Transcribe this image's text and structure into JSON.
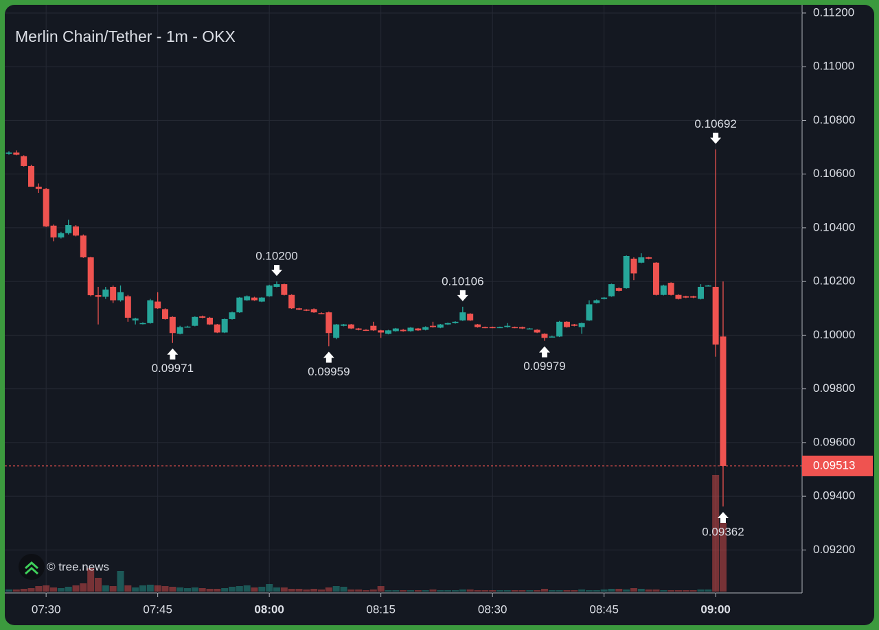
{
  "chart_data": {
    "type": "candlestick",
    "title": "Merlin Chain/Tether - 1m - OKX",
    "watermark": "© tree.news",
    "up_color": "#26a69a",
    "down_color": "#ef5350",
    "grid": true,
    "x": [
      "07:25",
      "07:26",
      "07:27",
      "07:28",
      "07:29",
      "07:30",
      "07:31",
      "07:32",
      "07:33",
      "07:34",
      "07:35",
      "07:36",
      "07:37",
      "07:38",
      "07:39",
      "07:40",
      "07:41",
      "07:42",
      "07:43",
      "07:44",
      "07:45",
      "07:46",
      "07:47",
      "07:48",
      "07:49",
      "07:50",
      "07:51",
      "07:52",
      "07:53",
      "07:54",
      "07:55",
      "07:56",
      "07:57",
      "07:58",
      "07:59",
      "08:00",
      "08:01",
      "08:02",
      "08:03",
      "08:04",
      "08:05",
      "08:06",
      "08:07",
      "08:08",
      "08:09",
      "08:10",
      "08:11",
      "08:12",
      "08:13",
      "08:14",
      "08:15",
      "08:16",
      "08:17",
      "08:18",
      "08:19",
      "08:20",
      "08:21",
      "08:22",
      "08:23",
      "08:24",
      "08:25",
      "08:26",
      "08:27",
      "08:28",
      "08:29",
      "08:30",
      "08:31",
      "08:32",
      "08:33",
      "08:34",
      "08:35",
      "08:36",
      "08:37",
      "08:38",
      "08:39",
      "08:40",
      "08:41",
      "08:42",
      "08:43",
      "08:44",
      "08:45",
      "08:46",
      "08:47",
      "08:48",
      "08:49",
      "08:50",
      "08:51",
      "08:52",
      "08:53",
      "08:54",
      "08:55",
      "08:56",
      "08:57",
      "08:58",
      "08:59",
      "09:00",
      "09:01"
    ],
    "open": [
      0.10676,
      0.1068,
      0.10667,
      0.1063,
      0.10553,
      0.10545,
      0.10408,
      0.10364,
      0.1038,
      0.10405,
      0.10371,
      0.1029,
      0.10149,
      0.10143,
      0.1018,
      0.1013,
      0.10145,
      0.10055,
      0.10042,
      0.10045,
      0.10125,
      0.10097,
      0.10068,
      0.10005,
      0.1003,
      0.10035,
      0.1007,
      0.10065,
      0.1004,
      0.1001,
      0.1006,
      0.10085,
      0.1013,
      0.1014,
      0.10125,
      0.10145,
      0.1018,
      0.1019,
      0.1015,
      0.101,
      0.10095,
      0.10097,
      0.10082,
      0.10085,
      0.0999,
      0.10035,
      0.1004,
      0.10025,
      0.1002,
      0.10035,
      0.10018,
      0.10005,
      0.10015,
      0.1002,
      0.10015,
      0.10025,
      0.1002,
      0.10035,
      0.10028,
      0.1004,
      0.10045,
      0.10055,
      0.1008,
      0.1004,
      0.1003,
      0.1003,
      0.1003,
      0.1003,
      0.1003,
      0.1003,
      0.10025,
      0.1002,
      0.10005,
      0.09995,
      0.09995,
      0.1005,
      0.1004,
      0.1003,
      0.10055,
      0.1012,
      0.10135,
      0.10145,
      0.10175,
      0.10175,
      0.10285,
      0.1027,
      0.1029,
      0.1027,
      0.1015,
      0.10195,
      0.1015,
      0.10145,
      0.10145,
      0.10135,
      0.10185,
      0.1018,
      0.09995
    ],
    "high": [
      0.10685,
      0.10688,
      0.1067,
      0.10635,
      0.10565,
      0.10548,
      0.10412,
      0.10385,
      0.1043,
      0.1041,
      0.10375,
      0.10292,
      0.1018,
      0.1018,
      0.10185,
      0.10185,
      0.1015,
      0.10065,
      0.10048,
      0.10135,
      0.1016,
      0.101,
      0.1007,
      0.10035,
      0.10035,
      0.1007,
      0.10073,
      0.10068,
      0.10042,
      0.10062,
      0.10088,
      0.10142,
      0.10148,
      0.10143,
      0.10142,
      0.10188,
      0.102,
      0.10192,
      0.10152,
      0.10102,
      0.10097,
      0.101,
      0.10085,
      0.10088,
      0.10042,
      0.10042,
      0.10042,
      0.10027,
      0.10022,
      0.1005,
      0.1002,
      0.1002,
      0.10027,
      0.10023,
      0.1003,
      0.10027,
      0.10033,
      0.1005,
      0.10042,
      0.10047,
      0.10052,
      0.10106,
      0.10082,
      0.10042,
      0.10032,
      0.10032,
      0.10032,
      0.10045,
      0.10032,
      0.10032,
      0.10027,
      0.10022,
      0.10007,
      0.09998,
      0.10053,
      0.10052,
      0.10042,
      0.10047,
      0.1013,
      0.10133,
      0.10142,
      0.10192,
      0.10178,
      0.10297,
      0.1029,
      0.10305,
      0.10292,
      0.10272,
      0.10188,
      0.10197,
      0.10152,
      0.10147,
      0.10147,
      0.1019,
      0.10187,
      0.10692,
      0.102
    ],
    "low": [
      0.10672,
      0.1067,
      0.10628,
      0.10553,
      0.1053,
      0.10403,
      0.1035,
      0.1036,
      0.10375,
      0.10368,
      0.10288,
      0.10145,
      0.1004,
      0.10135,
      0.1012,
      0.10125,
      0.1005,
      0.1004,
      0.1004,
      0.10043,
      0.10098,
      0.10058,
      0.09971,
      0.10003,
      0.10028,
      0.10033,
      0.10063,
      0.10038,
      0.10008,
      0.10008,
      0.10058,
      0.10083,
      0.10128,
      0.10128,
      0.10123,
      0.10143,
      0.10178,
      0.10148,
      0.10098,
      0.10093,
      0.1009,
      0.10083,
      0.10078,
      0.09959,
      0.09985,
      0.10033,
      0.10023,
      0.10018,
      0.10016,
      0.10016,
      0.0999,
      0.10003,
      0.10013,
      0.10013,
      0.10013,
      0.10016,
      0.10018,
      0.10028,
      0.10026,
      0.10038,
      0.10043,
      0.10053,
      0.10053,
      0.10028,
      0.10026,
      0.10026,
      0.10028,
      0.10028,
      0.10026,
      0.10023,
      0.10023,
      0.10008,
      0.09979,
      0.09993,
      0.09993,
      0.10028,
      0.10033,
      0.10005,
      0.10053,
      0.10118,
      0.10133,
      0.10143,
      0.10163,
      0.10173,
      0.10205,
      0.10268,
      0.10283,
      0.10148,
      0.10148,
      0.10148,
      0.10133,
      0.10138,
      0.10138,
      0.10133,
      0.10183,
      0.0992,
      0.09362
    ],
    "close": [
      0.1068,
      0.10672,
      0.1063,
      0.10553,
      0.10545,
      0.10405,
      0.10364,
      0.1038,
      0.1041,
      0.10371,
      0.1029,
      0.10149,
      0.10143,
      0.1017,
      0.1013,
      0.1016,
      0.10065,
      0.10062,
      0.10045,
      0.1013,
      0.101,
      0.1006,
      0.10008,
      0.1003,
      0.10032,
      0.10068,
      0.10065,
      0.1004,
      0.1001,
      0.1006,
      0.10085,
      0.1014,
      0.10145,
      0.1013,
      0.1014,
      0.10185,
      0.1019,
      0.1015,
      0.101,
      0.10095,
      0.10092,
      0.10085,
      0.1008,
      0.10008,
      0.1004,
      0.1004,
      0.10025,
      0.1002,
      0.10018,
      0.10018,
      0.1001,
      0.10018,
      0.10025,
      0.10015,
      0.10028,
      0.10018,
      0.1003,
      0.1003,
      0.1004,
      0.10045,
      0.1005,
      0.10085,
      0.10055,
      0.1003,
      0.10028,
      0.10028,
      0.1003,
      0.10035,
      0.10028,
      0.10025,
      0.10025,
      0.1001,
      0.0999,
      0.09995,
      0.1005,
      0.1003,
      0.10035,
      0.10045,
      0.10115,
      0.1013,
      0.1014,
      0.1019,
      0.10165,
      0.10295,
      0.1023,
      0.1029,
      0.10285,
      0.1015,
      0.10185,
      0.1015,
      0.10135,
      0.1014,
      0.1014,
      0.1018,
      0.10185,
      0.09965,
      0.09513
    ],
    "volume": [
      3,
      3,
      4,
      5,
      8,
      9,
      6,
      5,
      7,
      9,
      12,
      34,
      20,
      9,
      8,
      30,
      9,
      6,
      9,
      10,
      9,
      8,
      7,
      6,
      5,
      6,
      5,
      4,
      4,
      5,
      7,
      8,
      9,
      6,
      7,
      11,
      6,
      6,
      4,
      4,
      3,
      4,
      3,
      6,
      8,
      7,
      3,
      3,
      2,
      3,
      8,
      2,
      2,
      2,
      2,
      2,
      2,
      3,
      2,
      2,
      2,
      3,
      3,
      2,
      2,
      2,
      2,
      2,
      2,
      2,
      2,
      2,
      4,
      2,
      2,
      2,
      2,
      3,
      2,
      2,
      3,
      4,
      4,
      3,
      5,
      4,
      3,
      3,
      2,
      2,
      2,
      2,
      2,
      3,
      3,
      170,
      100
    ],
    "ylim": [
      0.09045,
      0.11228
    ],
    "yticks": [
      {
        "value": 0.092,
        "label": "0.09200"
      },
      {
        "value": 0.094,
        "label": "0.09400"
      },
      {
        "value": 0.096,
        "label": "0.09600"
      },
      {
        "value": 0.098,
        "label": "0.09800"
      },
      {
        "value": 0.1,
        "label": "0.10000"
      },
      {
        "value": 0.102,
        "label": "0.10200"
      },
      {
        "value": 0.104,
        "label": "0.10400"
      },
      {
        "value": 0.106,
        "label": "0.10600"
      },
      {
        "value": 0.108,
        "label": "0.10800"
      },
      {
        "value": 0.11,
        "label": "0.11000"
      },
      {
        "value": 0.112,
        "label": "0.11200"
      }
    ],
    "xticks": [
      "07:30",
      "07:45",
      "08:00",
      "08:15",
      "08:30",
      "08:45",
      "09:00"
    ],
    "annotations": [
      {
        "x": "07:47",
        "value": 0.09971,
        "label": "0.09971",
        "direction": "up"
      },
      {
        "x": "08:01",
        "value": 0.102,
        "label": "0.10200",
        "direction": "down"
      },
      {
        "x": "08:08",
        "value": 0.09959,
        "label": "0.09959",
        "direction": "up"
      },
      {
        "x": "08:26",
        "value": 0.10106,
        "label": "0.10106",
        "direction": "down"
      },
      {
        "x": "08:37",
        "value": 0.09979,
        "label": "0.09979",
        "direction": "up"
      },
      {
        "x": "09:00",
        "value": 0.10692,
        "label": "0.10692",
        "direction": "down"
      },
      {
        "x": "09:01",
        "value": 0.09362,
        "label": "0.09362",
        "direction": "up"
      }
    ],
    "last_price": {
      "value": 0.09513,
      "label": "0.09513"
    }
  }
}
